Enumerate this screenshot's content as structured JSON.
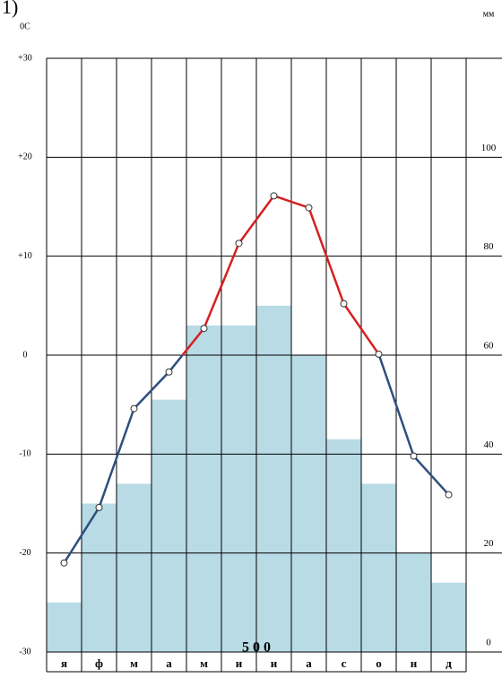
{
  "chart_data": {
    "type": "climatogram",
    "label": "1)",
    "ylabel": "0С",
    "y2label": "мм",
    "annotation": "5 0 0",
    "categories": [
      "я",
      "ф",
      "м",
      "а",
      "м",
      "и",
      "и",
      "а",
      "с",
      "о",
      "н",
      "д"
    ],
    "series": [
      {
        "name": "precipitation",
        "axis": "y2",
        "color": "#b8dbe6",
        "values": [
          10,
          30,
          34,
          51,
          66,
          66,
          70,
          60,
          43,
          34,
          20,
          14
        ]
      },
      {
        "name": "temperature",
        "axis": "y",
        "color": "#d62020",
        "negative_color": "#2f4f7f",
        "values": [
          -21,
          -15.4,
          -5.4,
          -1.7,
          2.7,
          11.3,
          16.1,
          14.9,
          5.2,
          0.1,
          -10.2,
          -14.1
        ]
      }
    ],
    "ylim": [
      -30,
      30
    ],
    "yticks": [
      {
        "value": 30,
        "label": "+30"
      },
      {
        "value": 20,
        "label": "+20"
      },
      {
        "value": 10,
        "label": "+10"
      },
      0,
      -10,
      -20,
      -30
    ],
    "y2lim": [
      0,
      120
    ],
    "y2ticks": [
      0,
      20,
      40,
      60,
      80,
      100
    ],
    "grid": true
  }
}
